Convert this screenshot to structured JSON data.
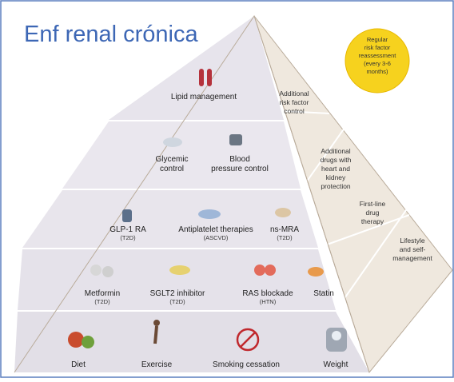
{
  "title": "Enf renal crónica",
  "badge": [
    "Regular",
    "risk factor",
    "reassessment",
    "(every 3-6",
    "months)"
  ],
  "tiers": [
    {
      "items": [
        {
          "label": [
            "Lipid management"
          ]
        }
      ]
    },
    {
      "items": [
        {
          "label": [
            "Glycemic",
            "control"
          ]
        },
        {
          "label": [
            "Blood",
            "pressure control"
          ]
        }
      ]
    },
    {
      "items": [
        {
          "label": [
            "GLP-1 RA"
          ],
          "note": "(T2D)"
        },
        {
          "label": [
            "Antiplatelet therapies"
          ],
          "note": "(ASCVD)"
        },
        {
          "label": [
            "ns-MRA"
          ],
          "note": "(T2D)"
        }
      ]
    },
    {
      "items": [
        {
          "label": [
            "Metformin"
          ],
          "note": "(T2D)"
        },
        {
          "label": [
            "SGLT2 inhibitor"
          ],
          "note": "(T2D)"
        },
        {
          "label": [
            "RAS blockade"
          ],
          "note": "(HTN)"
        },
        {
          "label": [
            "Statin"
          ]
        }
      ]
    },
    {
      "items": [
        {
          "label": [
            "Diet"
          ]
        },
        {
          "label": [
            "Exercise"
          ]
        },
        {
          "label": [
            "Smoking cessation"
          ]
        },
        {
          "label": [
            "Weight"
          ]
        }
      ]
    }
  ],
  "side_labels": [
    [
      "Additional",
      "risk factor",
      "control"
    ],
    [
      "Additional",
      "drugs with",
      "heart and",
      "kidney",
      "protection"
    ],
    [
      "First-line",
      "drug",
      "therapy"
    ],
    [
      "Lifestyle",
      "and self-",
      "management"
    ]
  ]
}
